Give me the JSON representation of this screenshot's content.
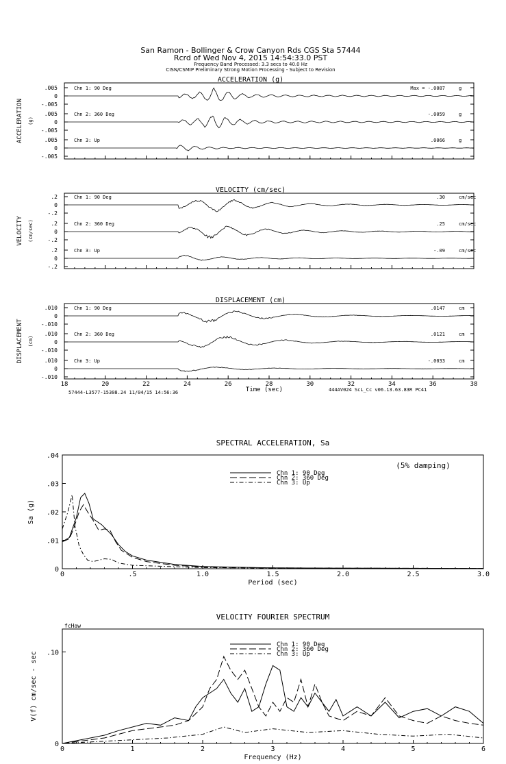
{
  "header": {
    "line1": "San Ramon - Bollinger & Crow Canyon Rds     CGS Sta 57444",
    "line2": "Rcrd of Wed Nov  4, 2015 14:54:33.0 PST",
    "line3": "Frequency Band Processed: 3.3 secs to 40.0 Hz",
    "line4": "CISN/CSMIP Preliminary Strong Motion Processing - Subject to Revision"
  },
  "colors": {
    "ink": "#000000",
    "paper": "#ffffff"
  },
  "time_series": [
    {
      "title": "ACCELERATION (g)",
      "ylabel": "ACCELERATION",
      "yunit": "(g)",
      "ticks": [
        ".005",
        "0",
        "-.005"
      ],
      "channels": [
        {
          "name": "Chn 1: 90 Deg",
          "peak": "Max =  -.0087",
          "unit": "g"
        },
        {
          "name": "Chn 2: 360 Deg",
          "peak": "-.0059",
          "unit": "g"
        },
        {
          "name": "Chn 3: Up",
          "peak": ".0066",
          "unit": "g"
        }
      ]
    },
    {
      "title": "VELOCITY (cm/sec)",
      "ylabel": "VELOCITY",
      "yunit": "(cm/sec)",
      "ticks": [
        ".2",
        "0",
        "-.2"
      ],
      "channels": [
        {
          "name": "Chn 1: 90 Deg",
          "peak": ".30",
          "unit": "cm/sec"
        },
        {
          "name": "Chn 2: 360 Deg",
          "peak": ".25",
          "unit": "cm/sec"
        },
        {
          "name": "Chn 3: Up",
          "peak": "-.09",
          "unit": "cm/sec"
        }
      ]
    },
    {
      "title": "DISPLACEMENT (cm)",
      "ylabel": "DISPLACEMENT",
      "yunit": "(cm)",
      "ticks": [
        ".010",
        "0",
        "-.010"
      ],
      "channels": [
        {
          "name": "Chn 1: 90 Deg",
          "peak": ".0147",
          "unit": "cm"
        },
        {
          "name": "Chn 2: 360 Deg",
          "peak": ".0121",
          "unit": "cm"
        },
        {
          "name": "Chn 3: Up",
          "peak": "-.0033",
          "unit": "cm"
        }
      ]
    }
  ],
  "time_axis": {
    "ticks": [
      "18",
      "20",
      "22",
      "24",
      "26",
      "28",
      "30",
      "32",
      "34",
      "36",
      "38"
    ],
    "xlabel": "Time (sec)",
    "footer_left": "57444-L3577-15308.24 11/04/15 14:56:36",
    "footer_right": "444AV024  ScL_Cc  v06.13.63.83R PC41"
  },
  "chart_data": [
    {
      "type": "line",
      "title": "SPECTRAL ACCELERATION, Sa",
      "annotation": "(5% damping)",
      "xlabel": "Period (sec)",
      "ylabel": "Sa (g)",
      "xlim": [
        0,
        3.0
      ],
      "ylim": [
        0,
        0.04
      ],
      "x_ticks": [
        "0",
        ".5",
        "1.0",
        "1.5",
        "2.0",
        "2.5",
        "3.0"
      ],
      "y_ticks": [
        "0",
        ".01",
        ".02",
        ".03",
        ".04"
      ],
      "legend": [
        "Chn 1: 90 Deg",
        "Chn 2: 360 Deg",
        "Chn 3: Up"
      ],
      "series": [
        {
          "name": "Chn 1: 90 Deg",
          "dash": "solid",
          "x": [
            0.0,
            0.05,
            0.1,
            0.13,
            0.16,
            0.19,
            0.22,
            0.25,
            0.28,
            0.31,
            0.35,
            0.4,
            0.45,
            0.5,
            0.6,
            0.8,
            1.0,
            1.5,
            2.0,
            3.0
          ],
          "y": [
            0.0095,
            0.011,
            0.018,
            0.025,
            0.0265,
            0.023,
            0.0175,
            0.0165,
            0.0155,
            0.014,
            0.012,
            0.0085,
            0.006,
            0.0045,
            0.003,
            0.0015,
            0.0008,
            0.0003,
            0.0002,
            0.0001
          ]
        },
        {
          "name": "Chn 2: 360 Deg",
          "dash": "long-dash",
          "x": [
            0.0,
            0.05,
            0.08,
            0.12,
            0.15,
            0.18,
            0.22,
            0.26,
            0.3,
            0.34,
            0.38,
            0.42,
            0.5,
            0.6,
            0.8,
            1.0,
            1.5,
            2.0,
            3.0
          ],
          "y": [
            0.0095,
            0.0105,
            0.014,
            0.02,
            0.0225,
            0.02,
            0.017,
            0.0135,
            0.014,
            0.0135,
            0.0095,
            0.0065,
            0.004,
            0.0025,
            0.0012,
            0.0006,
            0.0003,
            0.0002,
            0.0001
          ]
        },
        {
          "name": "Chn 3: Up",
          "dash": "dash-dot",
          "x": [
            0.0,
            0.04,
            0.07,
            0.09,
            0.12,
            0.15,
            0.18,
            0.22,
            0.3,
            0.35,
            0.4,
            0.5,
            0.8,
            1.0,
            1.5,
            3.0
          ],
          "y": [
            0.014,
            0.02,
            0.026,
            0.015,
            0.008,
            0.005,
            0.003,
            0.0025,
            0.0035,
            0.0033,
            0.002,
            0.0012,
            0.0007,
            0.0004,
            0.0002,
            0.0001
          ]
        }
      ]
    },
    {
      "type": "line",
      "title": "VELOCITY FOURIER SPECTRUM",
      "annotation": "fcHaw",
      "xlabel": "Frequency (Hz)",
      "ylabel": "V(f)  cm/sec - sec",
      "xlim": [
        0,
        6
      ],
      "ylim": [
        0,
        0.125
      ],
      "x_ticks": [
        "0",
        "1",
        "2",
        "3",
        "4",
        "5",
        "6"
      ],
      "y_ticks": [
        "0",
        ".10"
      ],
      "legend": [
        "Chn 1: 90 Deg",
        "Chn 2: 360 Deg",
        "Chn 3: Up"
      ],
      "series": [
        {
          "name": "Chn 1: 90 Deg",
          "dash": "solid",
          "x": [
            0,
            0.2,
            0.4,
            0.6,
            0.8,
            1.0,
            1.2,
            1.4,
            1.6,
            1.8,
            1.9,
            2.0,
            2.1,
            2.2,
            2.3,
            2.4,
            2.5,
            2.6,
            2.7,
            2.8,
            2.9,
            3.0,
            3.1,
            3.2,
            3.3,
            3.4,
            3.5,
            3.6,
            3.7,
            3.8,
            3.9,
            4.0,
            4.2,
            4.4,
            4.6,
            4.8,
            5.0,
            5.2,
            5.4,
            5.6,
            5.8,
            6.0
          ],
          "y": [
            0.0,
            0.003,
            0.006,
            0.009,
            0.014,
            0.018,
            0.022,
            0.02,
            0.028,
            0.025,
            0.04,
            0.05,
            0.055,
            0.06,
            0.07,
            0.055,
            0.045,
            0.06,
            0.035,
            0.04,
            0.065,
            0.085,
            0.08,
            0.04,
            0.035,
            0.05,
            0.04,
            0.055,
            0.045,
            0.035,
            0.048,
            0.03,
            0.04,
            0.03,
            0.045,
            0.028,
            0.035,
            0.038,
            0.03,
            0.04,
            0.035,
            0.022
          ]
        },
        {
          "name": "Chn 2: 360 Deg",
          "dash": "long-dash",
          "x": [
            0,
            0.2,
            0.4,
            0.6,
            0.8,
            1.0,
            1.2,
            1.4,
            1.6,
            1.8,
            2.0,
            2.1,
            2.2,
            2.3,
            2.4,
            2.5,
            2.6,
            2.7,
            2.8,
            2.9,
            3.0,
            3.1,
            3.2,
            3.3,
            3.4,
            3.5,
            3.6,
            3.7,
            3.8,
            4.0,
            4.2,
            4.4,
            4.6,
            4.8,
            5.0,
            5.2,
            5.4,
            5.6,
            5.8,
            6.0
          ],
          "y": [
            0.0,
            0.002,
            0.004,
            0.006,
            0.01,
            0.014,
            0.016,
            0.018,
            0.02,
            0.025,
            0.04,
            0.06,
            0.07,
            0.095,
            0.08,
            0.07,
            0.08,
            0.06,
            0.04,
            0.03,
            0.045,
            0.035,
            0.05,
            0.045,
            0.07,
            0.04,
            0.065,
            0.045,
            0.03,
            0.025,
            0.035,
            0.03,
            0.05,
            0.03,
            0.025,
            0.022,
            0.03,
            0.025,
            0.022,
            0.02
          ]
        },
        {
          "name": "Chn 3: Up",
          "dash": "dash-dot",
          "x": [
            0,
            0.5,
            1.0,
            1.5,
            2.0,
            2.3,
            2.6,
            3.0,
            3.5,
            4.0,
            4.5,
            5.0,
            5.5,
            6.0
          ],
          "y": [
            0.0,
            0.002,
            0.004,
            0.006,
            0.01,
            0.018,
            0.012,
            0.016,
            0.012,
            0.014,
            0.01,
            0.008,
            0.01,
            0.006
          ]
        }
      ]
    }
  ]
}
